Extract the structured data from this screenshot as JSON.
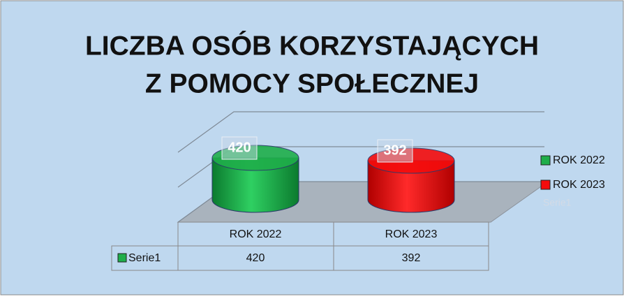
{
  "chart_data": {
    "type": "cylinder",
    "title_lines": [
      "LICZBA OSÓB KORZYSTAJĄCYCH",
      "Z POMOCY SPOŁECZNEJ"
    ],
    "categories": [
      "ROK 2022",
      "ROK 2023"
    ],
    "series": [
      {
        "name": "Serie1",
        "colors": [
          "#1fae4a",
          "#f40c0c"
        ],
        "values": [
          420,
          392
        ]
      }
    ],
    "ylim": [
      0,
      700
    ],
    "yticks": [
      0,
      350,
      700
    ],
    "grid": true,
    "legend": "right",
    "data_table": true
  }
}
